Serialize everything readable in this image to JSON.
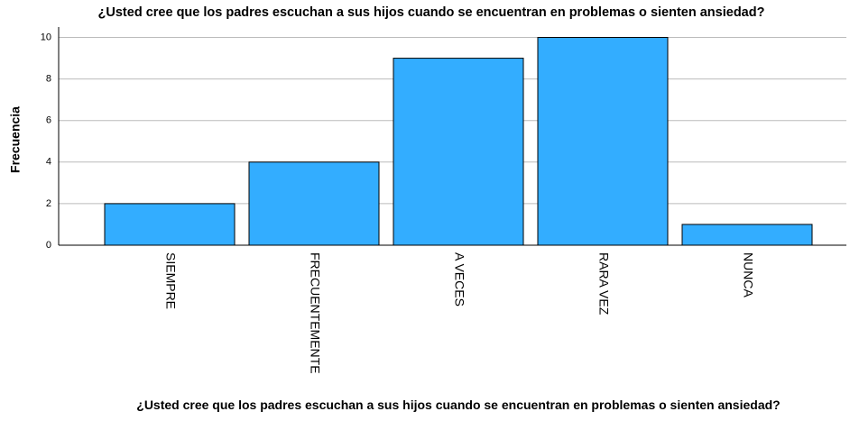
{
  "chart_data": {
    "type": "bar",
    "title": "¿Usted cree que los padres escuchan a sus hijos cuando se encuentran en problemas o sienten ansiedad?",
    "xlabel": "¿Usted cree que los padres escuchan a sus hijos cuando se encuentran en problemas o sienten ansiedad?",
    "ylabel": "Frecuencia",
    "categories": [
      "SIEMPRE",
      "FRECUENTEMENTE",
      "A VECES",
      "RARA VEZ",
      "NUNCA"
    ],
    "values": [
      2,
      4,
      9,
      10,
      1
    ],
    "color": "#33adff",
    "ylim": [
      0,
      10.5
    ],
    "yticks": [
      0,
      2,
      4,
      6,
      8,
      10
    ],
    "grid": true
  }
}
